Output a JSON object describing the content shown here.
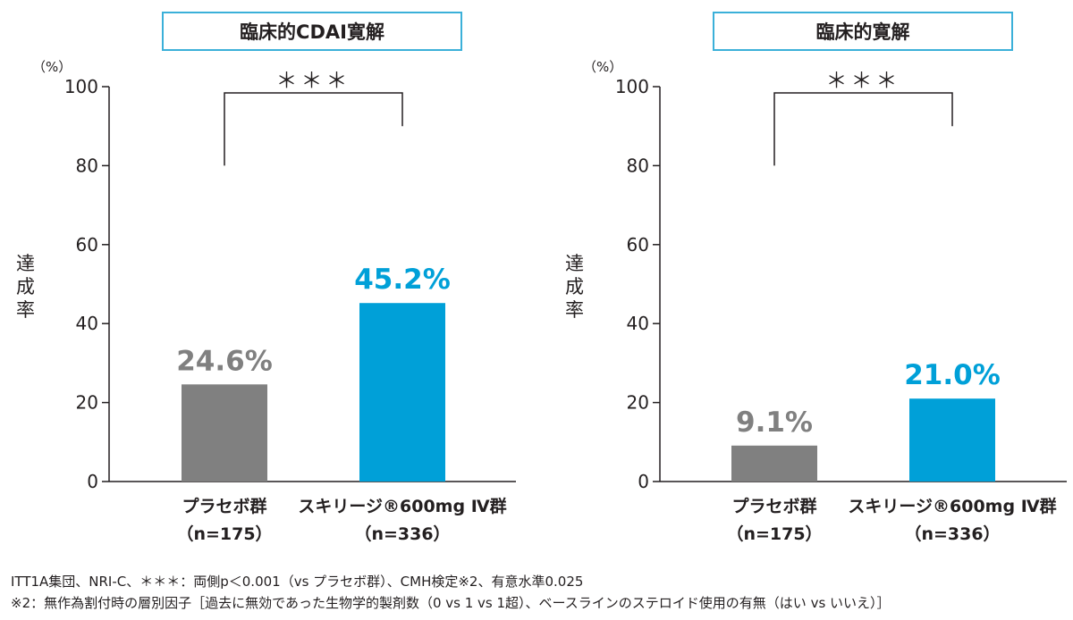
{
  "chart_data": [
    {
      "type": "bar",
      "title": "臨床的CDAI寛解",
      "y_unit": "（%）",
      "ylabel": "達成率",
      "ylim": [
        0,
        100
      ],
      "yticks": [
        0,
        20,
        40,
        60,
        80,
        100
      ],
      "categories": [
        "プラセボ群",
        "スキリージ®600mg Ⅳ群"
      ],
      "category_n": [
        "（n=175）",
        "（n=336）"
      ],
      "values": [
        24.6,
        45.2
      ],
      "value_labels": [
        "24.6%",
        "45.2%"
      ],
      "bar_colors": [
        "#808080",
        "#00a0d8"
      ],
      "significance": "＊＊＊"
    },
    {
      "type": "bar",
      "title": "臨床的寛解",
      "y_unit": "（%）",
      "ylabel": "達成率",
      "ylim": [
        0,
        100
      ],
      "yticks": [
        0,
        20,
        40,
        60,
        80,
        100
      ],
      "categories": [
        "プラセボ群",
        "スキリージ®600mg Ⅳ群"
      ],
      "category_n": [
        "（n=175）",
        "（n=336）"
      ],
      "values": [
        9.1,
        21.0
      ],
      "value_labels": [
        "9.1%",
        "21.0%"
      ],
      "bar_colors": [
        "#808080",
        "#00a0d8"
      ],
      "significance": "＊＊＊"
    }
  ],
  "footnotes": {
    "line1": "ITT1A集団、NRI-C、＊＊＊：両側p＜0.001（vs プラセボ群）、CMH検定※2、有意水準0.025",
    "line2": "※2：無作為割付時の層別因子［過去に無効であった生物学的製剤数（0 vs 1 vs 1超）、ベースラインのステロイド使用の有無（はい vs いいえ）］"
  },
  "colors": {
    "placebo": "#808080",
    "skyrizi": "#00a0d8",
    "title_border": "#3bb0d9",
    "axis": "#231f20"
  }
}
